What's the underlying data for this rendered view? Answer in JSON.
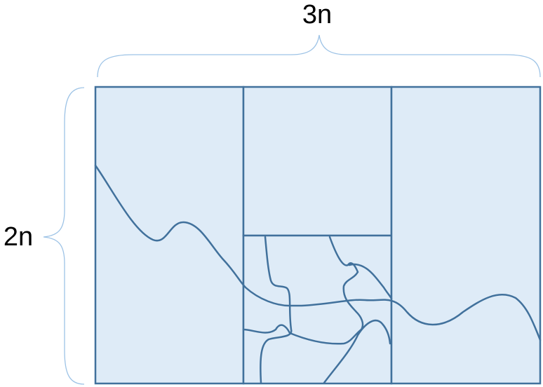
{
  "labels": {
    "width": "3n",
    "height": "2n"
  },
  "colors": {
    "fill": "#deebf7",
    "stroke": "#41719c",
    "brace": "#9dc3e6"
  }
}
